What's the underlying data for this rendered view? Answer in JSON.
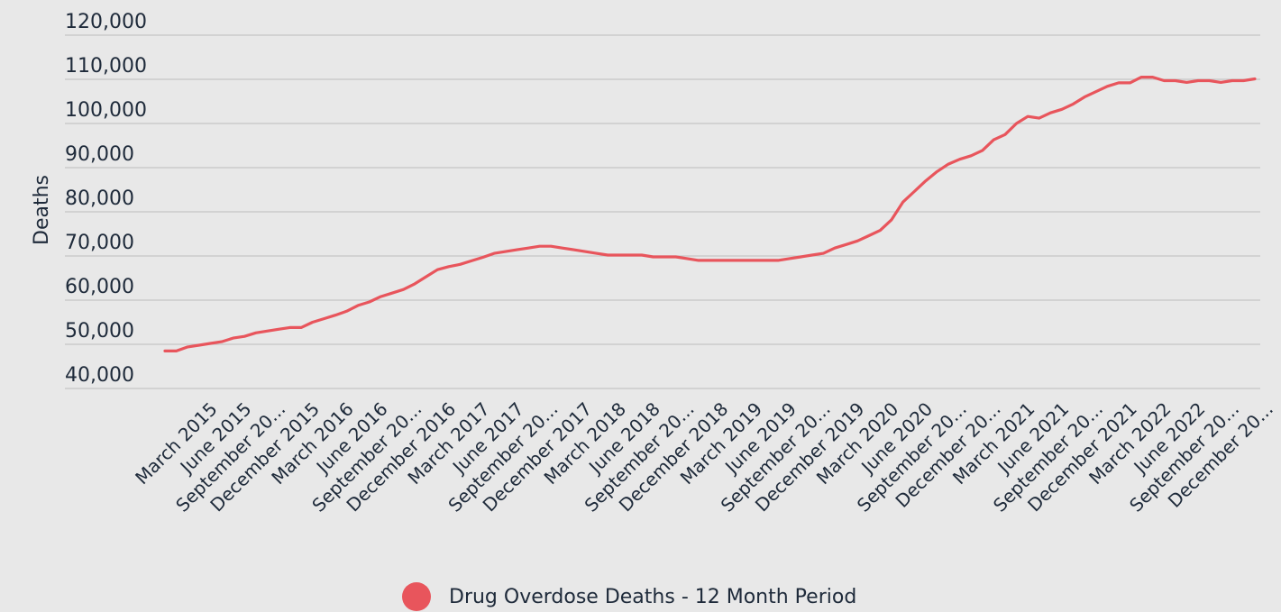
{
  "chart_data": {
    "type": "line",
    "title": "",
    "xlabel": "",
    "ylabel": "Deaths",
    "ylim": [
      40000,
      120000
    ],
    "yticks": [
      {
        "value": 40000,
        "label": "40,000"
      },
      {
        "value": 50000,
        "label": "50,000"
      },
      {
        "value": 60000,
        "label": "60,000"
      },
      {
        "value": 70000,
        "label": "70,000"
      },
      {
        "value": 80000,
        "label": "80,000"
      },
      {
        "value": 90000,
        "label": "90,000"
      },
      {
        "value": 100000,
        "label": "100,000"
      },
      {
        "value": 110000,
        "label": "110,000"
      },
      {
        "value": 120000,
        "label": "120,000"
      }
    ],
    "grid": true,
    "legend_position": "bottom-center",
    "x_tick_labels": [
      "March 2015",
      "June 2015",
      "September 20...",
      "December 2015",
      "March 2016",
      "June 2016",
      "September 20...",
      "December 2016",
      "March 2017",
      "June 2017",
      "September 20...",
      "December 2017",
      "March 2018",
      "June 2018",
      "September 20...",
      "December 2018",
      "March 2019",
      "June 2019",
      "September 20...",
      "December 2019",
      "March 2020",
      "June 2020",
      "September 20...",
      "December 20...",
      "March 2021",
      "June 2021",
      "September 20...",
      "December 2021",
      "March 2022",
      "June 2022",
      "September 20...",
      "December 20..."
    ],
    "x": [
      "2015-01",
      "2015-02",
      "2015-03",
      "2015-04",
      "2015-05",
      "2015-06",
      "2015-07",
      "2015-08",
      "2015-09",
      "2015-10",
      "2015-11",
      "2015-12",
      "2016-01",
      "2016-02",
      "2016-03",
      "2016-04",
      "2016-05",
      "2016-06",
      "2016-07",
      "2016-08",
      "2016-09",
      "2016-10",
      "2016-11",
      "2016-12",
      "2017-01",
      "2017-02",
      "2017-03",
      "2017-04",
      "2017-05",
      "2017-06",
      "2017-07",
      "2017-08",
      "2017-09",
      "2017-10",
      "2017-11",
      "2017-12",
      "2018-01",
      "2018-02",
      "2018-03",
      "2018-04",
      "2018-05",
      "2018-06",
      "2018-07",
      "2018-08",
      "2018-09",
      "2018-10",
      "2018-11",
      "2018-12",
      "2019-01",
      "2019-02",
      "2019-03",
      "2019-04",
      "2019-05",
      "2019-06",
      "2019-07",
      "2019-08",
      "2019-09",
      "2019-10",
      "2019-11",
      "2019-12",
      "2020-01",
      "2020-02",
      "2020-03",
      "2020-04",
      "2020-05",
      "2020-06",
      "2020-07",
      "2020-08",
      "2020-09",
      "2020-10",
      "2020-11",
      "2020-12",
      "2021-01",
      "2021-02",
      "2021-03",
      "2021-04",
      "2021-05",
      "2021-06",
      "2021-07",
      "2021-08",
      "2021-09",
      "2021-10",
      "2021-11",
      "2021-12",
      "2022-01",
      "2022-02",
      "2022-03",
      "2022-04",
      "2022-05",
      "2022-06",
      "2022-07",
      "2022-08",
      "2022-09",
      "2022-10",
      "2022-11",
      "2022-12",
      "2023-01"
    ],
    "series": [
      {
        "name": "Drug Overdose Deaths - 12 Month Period",
        "color": "#e8555c",
        "values": [
          48500,
          48500,
          49400,
          49800,
          50200,
          50600,
          51400,
          51800,
          52600,
          53000,
          53400,
          53800,
          53800,
          55000,
          55800,
          56600,
          57500,
          58800,
          59600,
          60800,
          61600,
          62400,
          63700,
          65300,
          66900,
          67600,
          68100,
          68900,
          69700,
          70600,
          71000,
          71400,
          71800,
          72200,
          72200,
          71800,
          71400,
          71000,
          70600,
          70200,
          70200,
          70200,
          70200,
          69800,
          69800,
          69800,
          69400,
          69000,
          69000,
          69000,
          69000,
          69000,
          69000,
          69000,
          69000,
          69400,
          69800,
          70200,
          70600,
          71800,
          72600,
          73400,
          74600,
          75800,
          78200,
          82200,
          84600,
          87000,
          89100,
          90800,
          91900,
          92700,
          93900,
          96300,
          97500,
          100000,
          101600,
          101200,
          102400,
          103200,
          104400,
          106000,
          107200,
          108400,
          109200,
          109200,
          110500,
          110500,
          109700,
          109700,
          109300,
          109700,
          109700,
          109300,
          109700,
          109700,
          110100
        ]
      }
    ]
  },
  "legend": {
    "label": "Drug Overdose Deaths - 12 Month Period",
    "color": "#e8555c"
  }
}
